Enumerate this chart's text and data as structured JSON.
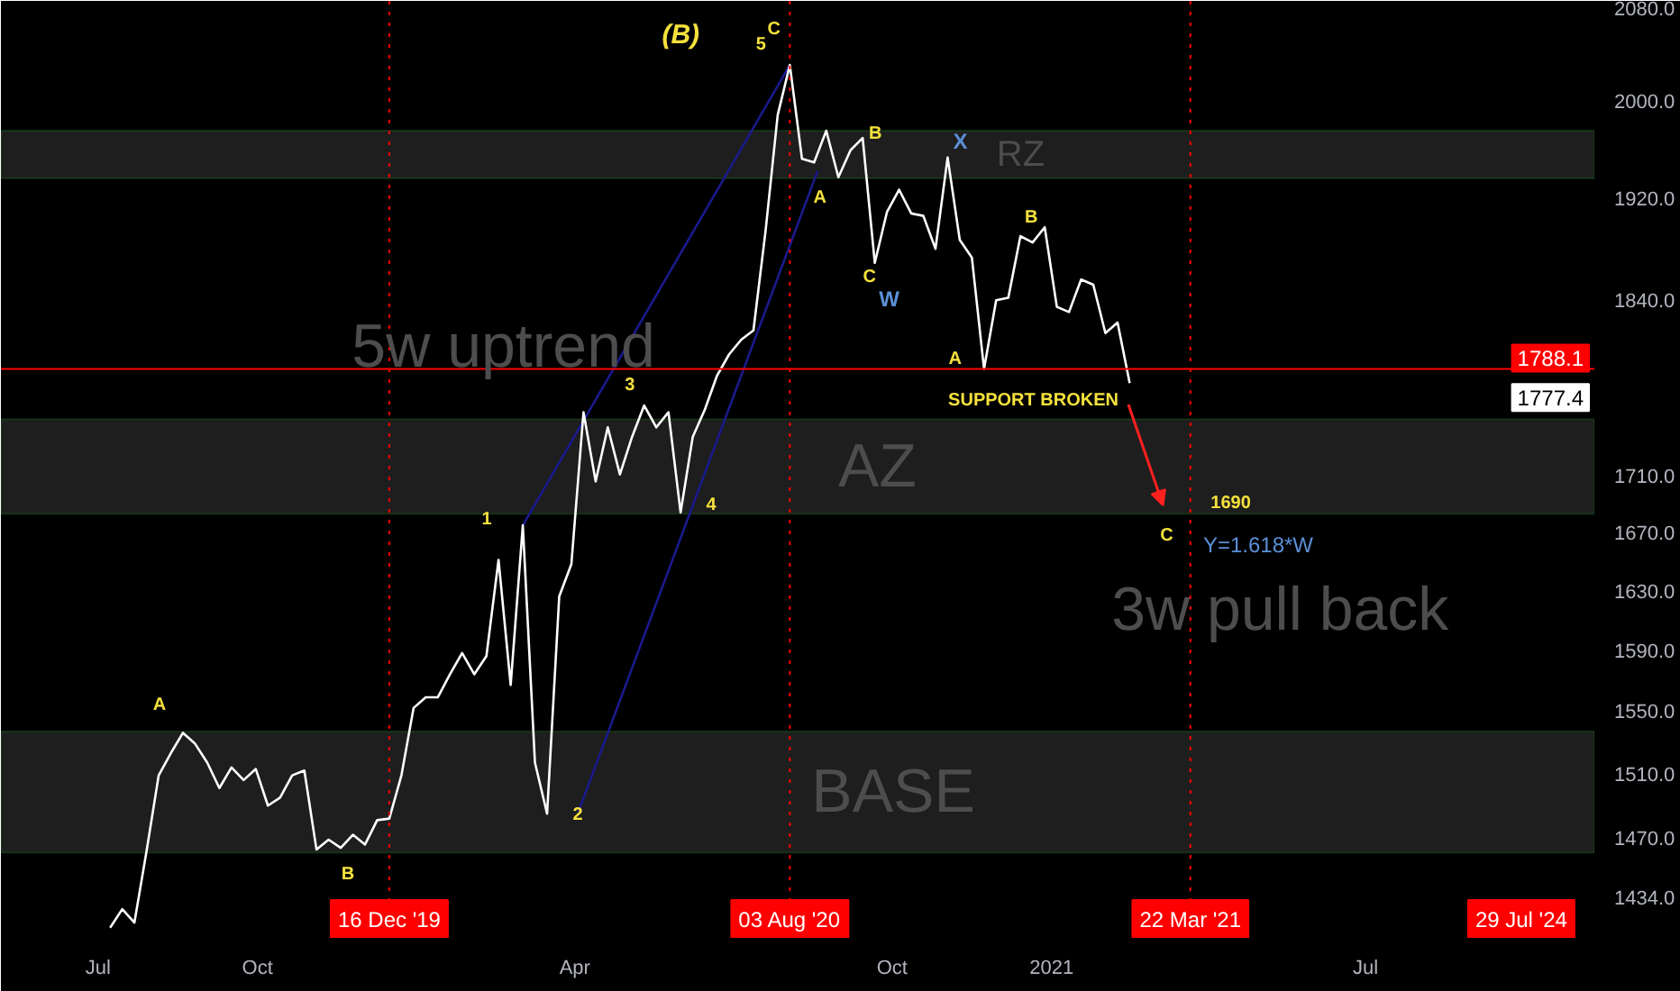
{
  "chart_data": {
    "type": "line",
    "x": [
      "2019-07-08",
      "2019-07-15",
      "2019-07-22",
      "2019-07-29",
      "2019-08-05",
      "2019-08-12",
      "2019-08-19",
      "2019-08-26",
      "2019-09-02",
      "2019-09-09",
      "2019-09-16",
      "2019-09-23",
      "2019-09-30",
      "2019-10-07",
      "2019-10-14",
      "2019-10-21",
      "2019-10-28",
      "2019-11-04",
      "2019-11-11",
      "2019-11-18",
      "2019-11-25",
      "2019-12-02",
      "2019-12-09",
      "2019-12-16",
      "2019-12-23",
      "2019-12-30",
      "2020-01-06",
      "2020-01-13",
      "2020-01-20",
      "2020-01-27",
      "2020-02-03",
      "2020-02-10",
      "2020-02-17",
      "2020-02-24",
      "2020-03-02",
      "2020-03-09",
      "2020-03-16",
      "2020-03-23",
      "2020-03-30",
      "2020-04-06",
      "2020-04-13",
      "2020-04-20",
      "2020-04-27",
      "2020-05-04",
      "2020-05-11",
      "2020-05-18",
      "2020-05-25",
      "2020-06-01",
      "2020-06-08",
      "2020-06-15",
      "2020-06-22",
      "2020-06-29",
      "2020-07-06",
      "2020-07-13",
      "2020-07-20",
      "2020-07-27",
      "2020-08-03",
      "2020-08-10",
      "2020-08-17",
      "2020-08-24",
      "2020-08-31",
      "2020-09-07",
      "2020-09-14",
      "2020-09-21",
      "2020-09-28",
      "2020-10-05",
      "2020-10-12",
      "2020-10-19",
      "2020-10-26",
      "2020-11-02",
      "2020-11-09",
      "2020-11-16",
      "2020-11-23",
      "2020-11-30",
      "2020-12-07",
      "2020-12-14",
      "2020-12-21",
      "2020-12-28",
      "2021-01-04",
      "2021-01-11",
      "2021-01-18",
      "2021-01-25",
      "2021-02-01",
      "2021-02-08",
      "2021-02-15"
    ],
    "series": [
      {
        "color": "#ffffff",
        "values": [
          1416,
          1427,
          1419,
          1462,
          1509,
          1523,
          1536,
          1529,
          1517,
          1501,
          1514,
          1506,
          1513,
          1490,
          1495,
          1509,
          1512,
          1463,
          1469,
          1464,
          1472,
          1466,
          1481,
          1482,
          1509,
          1552,
          1559,
          1559,
          1574,
          1588,
          1574,
          1586,
          1651,
          1567,
          1675,
          1517,
          1485,
          1626,
          1648,
          1756,
          1706,
          1745,
          1711,
          1738,
          1761,
          1745,
          1756,
          1684,
          1738,
          1758,
          1783,
          1799,
          1810,
          1817,
          1894,
          1988,
          2030,
          1952,
          1949,
          1975,
          1937,
          1959,
          1969,
          1869,
          1909,
          1927,
          1908,
          1906,
          1880,
          1953,
          1887,
          1873,
          1788.1,
          1840,
          1842,
          1890,
          1885,
          1897,
          1835,
          1831,
          1856,
          1852,
          1815,
          1823,
          1777.4
        ]
      },
      {
        "type": "line",
        "color": "#1a1a8c",
        "x": [
          "2020-04-03",
          "2020-08-19"
        ],
        "values": [
          1486,
          1942
        ]
      },
      {
        "type": "line",
        "color": "#1a1a8c",
        "x": [
          "2020-03-02",
          "2020-08-03"
        ],
        "values": [
          1675,
          2030
        ]
      }
    ],
    "log": "y",
    "grid": false,
    "xlim": [
      "2019-05-06",
      "2021-11-10"
    ],
    "xticks": [
      {
        "value": "2019-07-01",
        "label": "Jul"
      },
      {
        "value": "2019-10-01",
        "label": "Oct"
      },
      {
        "value": "2020-04-01",
        "label": "Apr"
      },
      {
        "value": "2020-10-01",
        "label": "Oct"
      },
      {
        "value": "2021-01-01",
        "label": "2021"
      },
      {
        "value": "2021-07-01",
        "label": "Jul"
      }
    ],
    "ylim": [
      1410,
      2085
    ],
    "yticks": [
      {
        "value": 1434,
        "label": "1434.0"
      },
      {
        "value": 1470,
        "label": "1470.0"
      },
      {
        "value": 1510,
        "label": "1510.0"
      },
      {
        "value": 1550,
        "label": "1550.0"
      },
      {
        "value": 1590,
        "label": "1590.0"
      },
      {
        "value": 1630,
        "label": "1630.0"
      },
      {
        "value": 1670,
        "label": "1670.0"
      },
      {
        "value": 1710,
        "label": "1710.0"
      },
      {
        "value": 1840,
        "label": "1840.0"
      },
      {
        "value": 1920,
        "label": "1920.0"
      },
      {
        "value": 2000,
        "label": "2000.0"
      },
      {
        "value": 2080,
        "label": "2080.0"
      }
    ],
    "ref_lines": [
      {
        "axis": "x",
        "value": "2019-12-16",
        "label": "16 Dec '19",
        "color": "#ff0000",
        "line_style": "dotted"
      },
      {
        "axis": "x",
        "value": "2020-08-03",
        "label": "03 Aug '20",
        "color": "#ff0000",
        "line_style": "dotted"
      },
      {
        "axis": "x",
        "value": "2021-03-22",
        "label": "22 Mar '21",
        "color": "#ff0000",
        "line_style": "dotted"
      },
      {
        "axis": "y",
        "value": 1788.1,
        "label": "1788.1",
        "color": "#ff0000",
        "line_style": "solid"
      }
    ],
    "bands": [
      {
        "axis": "y",
        "from": 1936,
        "to": 1975,
        "label": "RZ",
        "color": "#1e1e1e"
      },
      {
        "axis": "y",
        "from": 1683,
        "to": 1751,
        "label": "AZ",
        "color": "#1e1e1e"
      },
      {
        "axis": "y",
        "from": 1461,
        "to": 1537,
        "label": "BASE",
        "color": "#1e1e1e"
      }
    ],
    "annotations": [
      "(B)",
      "C",
      {
        "text": "5",
        "x": "2020-08-03",
        "y": 2030
      },
      {
        "text": "3",
        "x": "2020-05-11",
        "y": 1761
      },
      {
        "text": "4",
        "x": "2020-06-01",
        "y": 1684
      },
      {
        "text": "1",
        "x": "2020-03-02",
        "y": 1675
      },
      {
        "text": "2",
        "x": "2020-03-16",
        "y": 1485
      },
      {
        "text": "A",
        "x": "2019-08-19",
        "y": 1536
      },
      {
        "text": "B",
        "x": "2019-11-18",
        "y": 1464
      },
      {
        "text": "A",
        "x": "2020-08-10",
        "y": 1952
      },
      {
        "text": "B",
        "x": "2020-09-14",
        "y": 1969
      },
      {
        "text": "C",
        "x": "2020-09-21",
        "y": 1869
      },
      {
        "text": "W",
        "x": "2020-09-21",
        "y": 1869
      },
      {
        "text": "X",
        "x": "2020-11-02",
        "y": 1953
      },
      {
        "text": "A",
        "x": "2020-11-23",
        "y": 1788.1
      },
      {
        "text": "B",
        "x": "2020-12-14",
        "y": 1890
      },
      "SUPPORT BROKEN",
      "1690",
      "C",
      "Y=1.618*W",
      "5w uptrend",
      "3w pull back",
      "1777.4",
      "29 Jul '24"
    ]
  }
}
